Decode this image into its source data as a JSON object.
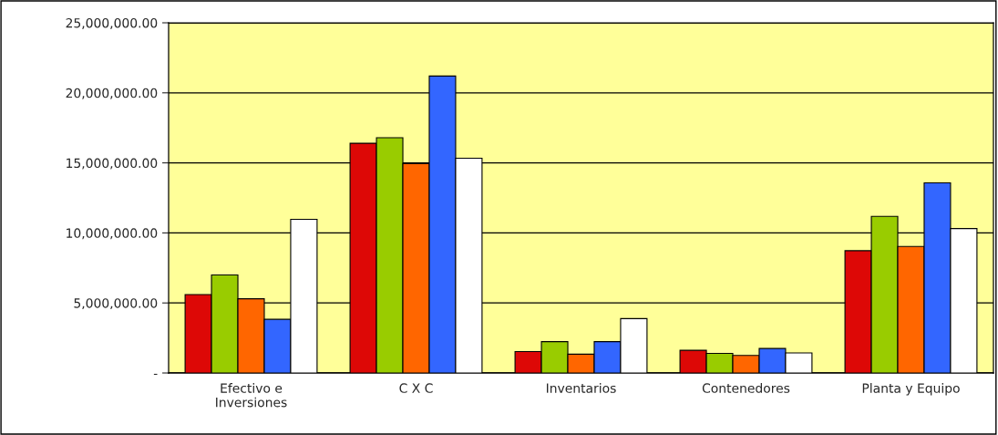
{
  "chart_data": {
    "type": "bar",
    "categories": [
      "Efectivo e\nInversiones",
      "C X C",
      "Inventarios",
      "Contenedores",
      "Planta y Equipo"
    ],
    "series": [
      {
        "color": "#dd0806",
        "values": [
          5600000,
          16400000,
          1530000,
          1620000,
          8730000
        ]
      },
      {
        "color": "#99cc00",
        "values": [
          7000000,
          16800000,
          2240000,
          1400000,
          11180000
        ]
      },
      {
        "color": "#ff6600",
        "values": [
          5300000,
          14950000,
          1340000,
          1250000,
          9030000
        ]
      },
      {
        "color": "#3366ff",
        "values": [
          3830000,
          21200000,
          2240000,
          1750000,
          13570000
        ]
      },
      {
        "color": "#ffffff",
        "values": [
          10970000,
          15330000,
          3880000,
          1430000,
          10310000
        ]
      }
    ],
    "ylim": [
      0,
      25000000
    ],
    "yticks": [
      {
        "value": 0,
        "label": "-"
      },
      {
        "value": 5000000,
        "label": "5,000,000.00"
      },
      {
        "value": 10000000,
        "label": "10,000,000.00"
      },
      {
        "value": 15000000,
        "label": "15,000,000.00"
      },
      {
        "value": 20000000,
        "label": "20,000,000.00"
      },
      {
        "value": 25000000,
        "label": "25,000,000.00"
      }
    ],
    "grid": "y",
    "legend": false
  }
}
